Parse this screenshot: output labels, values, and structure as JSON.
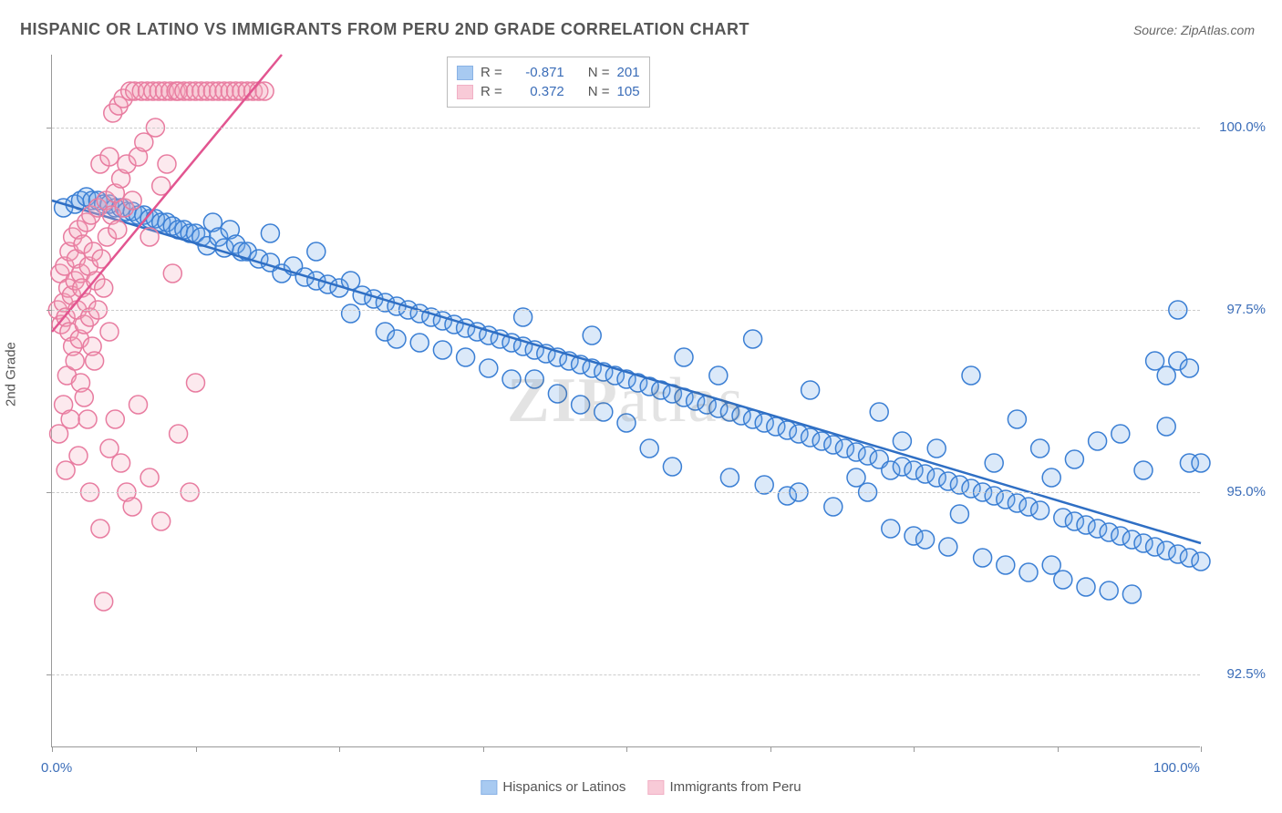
{
  "title": "HISPANIC OR LATINO VS IMMIGRANTS FROM PERU 2ND GRADE CORRELATION CHART",
  "source": "Source: ZipAtlas.com",
  "watermark": {
    "bold": "ZIP",
    "light": "atlas"
  },
  "ylabel": "2nd Grade",
  "chart": {
    "type": "scatter",
    "xlim": [
      0,
      100
    ],
    "ylim": [
      91.5,
      101
    ],
    "x_ticks": [
      0,
      12.5,
      25,
      37.5,
      50,
      62.5,
      75,
      87.5,
      100
    ],
    "x_tick_labels": {
      "0": "0.0%",
      "100": "100.0%"
    },
    "y_gridlines": [
      92.5,
      95.0,
      97.5,
      100.0
    ],
    "y_tick_labels": {
      "92.5": "92.5%",
      "95.0": "95.0%",
      "97.5": "97.5%",
      "100.0": "100.0%"
    },
    "background_color": "#ffffff",
    "grid_color": "#cccccc",
    "axis_color": "#999999",
    "marker_radius": 10,
    "marker_stroke_width": 1.5,
    "marker_fill_opacity": 0.25,
    "tick_label_color": "#3b6db8",
    "series": [
      {
        "name": "Hispanics or Latinos",
        "color": "#6fa8e8",
        "stroke": "#3b7fd4",
        "line_color": "#2f6fc4",
        "R": "-0.871",
        "N": "201",
        "trend": {
          "x1": 0,
          "y1": 99.0,
          "x2": 100,
          "y2": 94.3
        },
        "points": [
          [
            1,
            98.9
          ],
          [
            2,
            98.95
          ],
          [
            2.5,
            99.0
          ],
          [
            3,
            99.05
          ],
          [
            3.5,
            99.0
          ],
          [
            4,
            99.0
          ],
          [
            4.5,
            98.95
          ],
          [
            5,
            98.95
          ],
          [
            5.5,
            98.9
          ],
          [
            6,
            98.9
          ],
          [
            6.5,
            98.85
          ],
          [
            7,
            98.85
          ],
          [
            7.5,
            98.8
          ],
          [
            8,
            98.8
          ],
          [
            8.5,
            98.75
          ],
          [
            9,
            98.75
          ],
          [
            9.5,
            98.7
          ],
          [
            10,
            98.7
          ],
          [
            10.5,
            98.65
          ],
          [
            11,
            98.6
          ],
          [
            11.5,
            98.6
          ],
          [
            12,
            98.55
          ],
          [
            12.5,
            98.55
          ],
          [
            13,
            98.5
          ],
          [
            13.5,
            98.38
          ],
          [
            14,
            98.7
          ],
          [
            14.5,
            98.5
          ],
          [
            15,
            98.35
          ],
          [
            15.5,
            98.6
          ],
          [
            16,
            98.4
          ],
          [
            16.5,
            98.3
          ],
          [
            17,
            98.3
          ],
          [
            18,
            98.2
          ],
          [
            19,
            98.15
          ],
          [
            19,
            98.55
          ],
          [
            20,
            98.0
          ],
          [
            21,
            98.1
          ],
          [
            22,
            97.95
          ],
          [
            23,
            97.9
          ],
          [
            23,
            98.3
          ],
          [
            24,
            97.85
          ],
          [
            25,
            97.8
          ],
          [
            26,
            97.45
          ],
          [
            26,
            97.9
          ],
          [
            27,
            97.7
          ],
          [
            28,
            97.65
          ],
          [
            29,
            97.2
          ],
          [
            29,
            97.6
          ],
          [
            30,
            97.55
          ],
          [
            30,
            97.1
          ],
          [
            31,
            97.5
          ],
          [
            32,
            97.45
          ],
          [
            32,
            97.05
          ],
          [
            33,
            97.4
          ],
          [
            34,
            97.35
          ],
          [
            34,
            96.95
          ],
          [
            35,
            97.3
          ],
          [
            36,
            97.25
          ],
          [
            36,
            96.85
          ],
          [
            37,
            97.2
          ],
          [
            38,
            97.15
          ],
          [
            38,
            96.7
          ],
          [
            39,
            97.1
          ],
          [
            40,
            97.05
          ],
          [
            40,
            96.55
          ],
          [
            41,
            97.0
          ],
          [
            41,
            97.4
          ],
          [
            42,
            96.55
          ],
          [
            42,
            96.95
          ],
          [
            43,
            96.9
          ],
          [
            44,
            96.85
          ],
          [
            44,
            96.35
          ],
          [
            45,
            96.8
          ],
          [
            46,
            96.2
          ],
          [
            46,
            96.75
          ],
          [
            47,
            96.7
          ],
          [
            47,
            97.15
          ],
          [
            48,
            96.1
          ],
          [
            48,
            96.65
          ],
          [
            49,
            96.6
          ],
          [
            50,
            95.95
          ],
          [
            50,
            96.55
          ],
          [
            51,
            96.5
          ],
          [
            52,
            95.6
          ],
          [
            52,
            96.45
          ],
          [
            53,
            96.4
          ],
          [
            54,
            95.35
          ],
          [
            54,
            96.35
          ],
          [
            55,
            96.3
          ],
          [
            55,
            96.85
          ],
          [
            56,
            96.25
          ],
          [
            57,
            96.2
          ],
          [
            58,
            96.6
          ],
          [
            58,
            96.15
          ],
          [
            59,
            96.1
          ],
          [
            59,
            95.2
          ],
          [
            60,
            96.05
          ],
          [
            61,
            97.1
          ],
          [
            61,
            96.0
          ],
          [
            62,
            95.1
          ],
          [
            62,
            95.95
          ],
          [
            63,
            95.9
          ],
          [
            64,
            95.85
          ],
          [
            64,
            94.95
          ],
          [
            65,
            95.8
          ],
          [
            65,
            95.0
          ],
          [
            66,
            95.75
          ],
          [
            66,
            96.4
          ],
          [
            67,
            95.7
          ],
          [
            68,
            94.8
          ],
          [
            68,
            95.65
          ],
          [
            69,
            95.6
          ],
          [
            70,
            95.2
          ],
          [
            70,
            95.55
          ],
          [
            71,
            95.0
          ],
          [
            71,
            95.5
          ],
          [
            72,
            96.1
          ],
          [
            72,
            95.45
          ],
          [
            73,
            94.5
          ],
          [
            73,
            95.3
          ],
          [
            74,
            95.7
          ],
          [
            74,
            95.35
          ],
          [
            75,
            94.4
          ],
          [
            75,
            95.3
          ],
          [
            76,
            94.35
          ],
          [
            76,
            95.25
          ],
          [
            77,
            95.6
          ],
          [
            77,
            95.2
          ],
          [
            78,
            94.25
          ],
          [
            78,
            95.15
          ],
          [
            79,
            94.7
          ],
          [
            79,
            95.1
          ],
          [
            80,
            96.6
          ],
          [
            80,
            95.05
          ],
          [
            81,
            94.1
          ],
          [
            81,
            95.0
          ],
          [
            82,
            95.4
          ],
          [
            82,
            94.95
          ],
          [
            83,
            94.0
          ],
          [
            83,
            94.9
          ],
          [
            84,
            96.0
          ],
          [
            84,
            94.85
          ],
          [
            85,
            93.9
          ],
          [
            85,
            94.8
          ],
          [
            86,
            95.6
          ],
          [
            86,
            94.75
          ],
          [
            87,
            94.0
          ],
          [
            87,
            95.2
          ],
          [
            88,
            94.65
          ],
          [
            88,
            93.8
          ],
          [
            89,
            94.6
          ],
          [
            89,
            95.45
          ],
          [
            90,
            94.55
          ],
          [
            90,
            93.7
          ],
          [
            91,
            94.5
          ],
          [
            91,
            95.7
          ],
          [
            92,
            94.45
          ],
          [
            92,
            93.65
          ],
          [
            93,
            94.4
          ],
          [
            93,
            95.8
          ],
          [
            94,
            94.35
          ],
          [
            94,
            93.6
          ],
          [
            95,
            94.3
          ],
          [
            95,
            95.3
          ],
          [
            96,
            96.8
          ],
          [
            96,
            94.25
          ],
          [
            97,
            94.2
          ],
          [
            97,
            95.9
          ],
          [
            97,
            96.6
          ],
          [
            98,
            96.8
          ],
          [
            98,
            94.15
          ],
          [
            98,
            97.5
          ],
          [
            99,
            94.1
          ],
          [
            99,
            95.4
          ],
          [
            99,
            96.7
          ],
          [
            100,
            94.05
          ],
          [
            100,
            95.4
          ]
        ]
      },
      {
        "name": "Immigrants from Peru",
        "color": "#f5a8bd",
        "stroke": "#e87ca0",
        "line_color": "#e25590",
        "R": "0.372",
        "N": "105",
        "trend": {
          "x1": 0,
          "y1": 97.2,
          "x2": 20,
          "y2": 101
        },
        "points": [
          [
            0.5,
            97.5
          ],
          [
            0.6,
            95.8
          ],
          [
            0.7,
            98.0
          ],
          [
            0.8,
            97.3
          ],
          [
            1.0,
            97.6
          ],
          [
            1.0,
            96.2
          ],
          [
            1.1,
            98.1
          ],
          [
            1.2,
            97.4
          ],
          [
            1.2,
            95.3
          ],
          [
            1.3,
            96.6
          ],
          [
            1.4,
            97.8
          ],
          [
            1.5,
            98.3
          ],
          [
            1.5,
            97.2
          ],
          [
            1.6,
            96.0
          ],
          [
            1.7,
            97.7
          ],
          [
            1.8,
            98.5
          ],
          [
            1.8,
            97.0
          ],
          [
            2.0,
            97.9
          ],
          [
            2.0,
            96.8
          ],
          [
            2.1,
            98.2
          ],
          [
            2.2,
            97.5
          ],
          [
            2.3,
            95.5
          ],
          [
            2.3,
            98.6
          ],
          [
            2.4,
            97.1
          ],
          [
            2.5,
            96.5
          ],
          [
            2.5,
            98.0
          ],
          [
            2.6,
            97.8
          ],
          [
            2.7,
            98.4
          ],
          [
            2.8,
            96.3
          ],
          [
            2.8,
            97.3
          ],
          [
            3.0,
            98.7
          ],
          [
            3.0,
            97.6
          ],
          [
            3.1,
            96.0
          ],
          [
            3.2,
            98.1
          ],
          [
            3.3,
            97.4
          ],
          [
            3.3,
            95.0
          ],
          [
            3.4,
            98.8
          ],
          [
            3.5,
            97.0
          ],
          [
            3.6,
            98.3
          ],
          [
            3.7,
            96.8
          ],
          [
            3.8,
            97.9
          ],
          [
            4.0,
            98.9
          ],
          [
            4.0,
            97.5
          ],
          [
            4.2,
            99.5
          ],
          [
            4.2,
            94.5
          ],
          [
            4.3,
            98.2
          ],
          [
            4.5,
            93.5
          ],
          [
            4.5,
            97.8
          ],
          [
            4.7,
            99.0
          ],
          [
            4.8,
            98.5
          ],
          [
            5.0,
            97.2
          ],
          [
            5.0,
            99.6
          ],
          [
            5.0,
            95.6
          ],
          [
            5.2,
            98.8
          ],
          [
            5.3,
            100.2
          ],
          [
            5.5,
            99.1
          ],
          [
            5.5,
            96.0
          ],
          [
            5.7,
            98.6
          ],
          [
            5.8,
            100.3
          ],
          [
            6.0,
            99.3
          ],
          [
            6.0,
            95.4
          ],
          [
            6.2,
            100.4
          ],
          [
            6.3,
            98.9
          ],
          [
            6.5,
            99.5
          ],
          [
            6.5,
            95.0
          ],
          [
            6.8,
            100.5
          ],
          [
            7.0,
            99.0
          ],
          [
            7.0,
            94.8
          ],
          [
            7.2,
            100.5
          ],
          [
            7.5,
            99.6
          ],
          [
            7.5,
            96.2
          ],
          [
            7.8,
            100.5
          ],
          [
            8.0,
            99.8
          ],
          [
            8.3,
            100.5
          ],
          [
            8.5,
            98.5
          ],
          [
            8.5,
            95.2
          ],
          [
            8.8,
            100.5
          ],
          [
            9.0,
            100.0
          ],
          [
            9.3,
            100.5
          ],
          [
            9.5,
            99.2
          ],
          [
            9.5,
            94.6
          ],
          [
            9.8,
            100.5
          ],
          [
            10.0,
            99.5
          ],
          [
            10.3,
            100.5
          ],
          [
            10.5,
            98.0
          ],
          [
            10.8,
            100.5
          ],
          [
            11.0,
            100.5
          ],
          [
            11.0,
            95.8
          ],
          [
            11.5,
            100.5
          ],
          [
            12.0,
            100.5
          ],
          [
            12.0,
            95.0
          ],
          [
            12.5,
            100.5
          ],
          [
            12.5,
            96.5
          ],
          [
            13.0,
            100.5
          ],
          [
            13.5,
            100.5
          ],
          [
            14.0,
            100.5
          ],
          [
            14.5,
            100.5
          ],
          [
            15.0,
            100.5
          ],
          [
            15.5,
            100.5
          ],
          [
            16.0,
            100.5
          ],
          [
            16.5,
            100.5
          ],
          [
            17.0,
            100.5
          ],
          [
            17.5,
            100.5
          ],
          [
            18.0,
            100.5
          ],
          [
            18.5,
            100.5
          ]
        ]
      }
    ]
  },
  "legend_top": {
    "r_label": "R =",
    "n_label": "N ="
  },
  "legend_bottom": {
    "items": [
      "Hispanics or Latinos",
      "Immigrants from Peru"
    ]
  }
}
